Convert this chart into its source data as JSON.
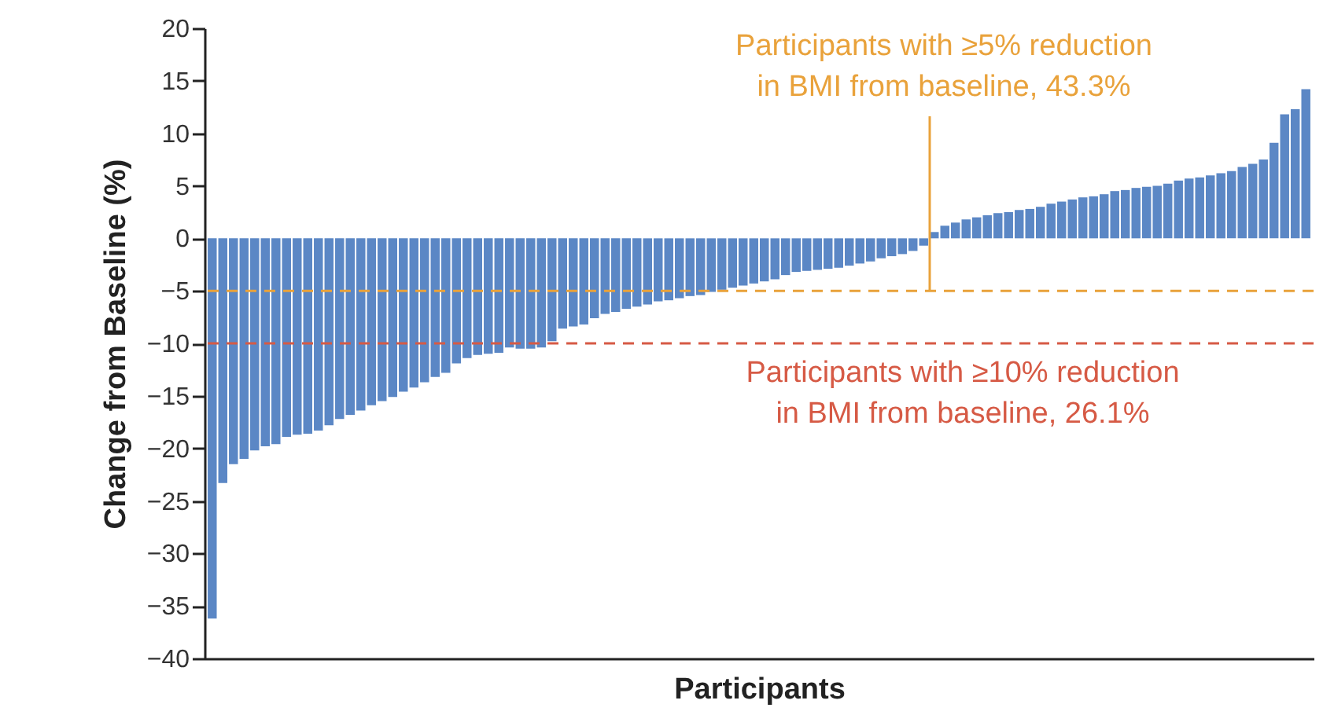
{
  "chart_data": {
    "type": "bar",
    "xlabel": "Participants",
    "ylabel": "Change from Baseline (%)",
    "categories": [
      null,
      null,
      null,
      null,
      null,
      null,
      null,
      null,
      null,
      null,
      null,
      null,
      null,
      null,
      null,
      null,
      null,
      null,
      null,
      null,
      null,
      null,
      null,
      null,
      null,
      null,
      null,
      null,
      null,
      null,
      null,
      null,
      null,
      null,
      null,
      null,
      null,
      null,
      null,
      null,
      null,
      null,
      null,
      null,
      null,
      null,
      null,
      null,
      null,
      null,
      null,
      null,
      null,
      null,
      null,
      null,
      null,
      null,
      null,
      null,
      null,
      null,
      null,
      null,
      null,
      null,
      null,
      null,
      null,
      null,
      null,
      null,
      null,
      null,
      null,
      null,
      null,
      null,
      null,
      null,
      null,
      null,
      null,
      null,
      null,
      null,
      null,
      null,
      null,
      null,
      null,
      null,
      null,
      null,
      null,
      null,
      null,
      null,
      null,
      null,
      null,
      null,
      null,
      null
    ],
    "values": [
      -36.2,
      -23.3,
      -21.5,
      -21,
      -20.2,
      -19.8,
      -19.6,
      -18.9,
      -18.7,
      -18.6,
      -18.3,
      -17.8,
      -17.2,
      -16.8,
      -16.4,
      -15.9,
      -15.5,
      -15.1,
      -14.6,
      -14.2,
      -13.7,
      -13.2,
      -12.8,
      -11.9,
      -11.4,
      -11.1,
      -11,
      -10.9,
      -10.4,
      -10.5,
      -10.5,
      -10.4,
      -9.8,
      -8.6,
      -8.4,
      -8.2,
      -7.6,
      -7.2,
      -7,
      -6.7,
      -6.5,
      -6.3,
      -6,
      -5.9,
      -5.7,
      -5.5,
      -5.4,
      -5.1,
      -4.9,
      -4.7,
      -4.5,
      -4.3,
      -4.1,
      -3.9,
      -3.5,
      -3.2,
      -3.1,
      -3,
      -2.9,
      -2.8,
      -2.6,
      -2.4,
      -2.2,
      -1.9,
      -1.7,
      -1.5,
      -1.2,
      -0.7,
      0.6,
      1.2,
      1.5,
      1.8,
      2,
      2.2,
      2.4,
      2.5,
      2.7,
      2.8,
      3,
      3.3,
      3.5,
      3.7,
      3.9,
      4,
      4.2,
      4.5,
      4.6,
      4.8,
      4.9,
      5,
      5.2,
      5.5,
      5.7,
      5.8,
      6,
      6.2,
      6.4,
      6.8,
      7.1,
      7.5,
      9.1,
      11.8,
      12.3,
      14.2
    ],
    "color": "#5b87c5",
    "ylim": [
      -40,
      20
    ],
    "yticks": [
      -40,
      -35,
      -30,
      -25,
      -20,
      -15,
      -10,
      -5,
      0,
      5,
      10,
      15,
      20
    ],
    "ref_lines": [
      {
        "axis": "y",
        "value": -5,
        "label": "Participants with ≥5% reduction in BMI from baseline, 43.3%",
        "color": "#e9a23b",
        "line_style": "dashed"
      },
      {
        "axis": "y",
        "value": -10,
        "label": "Participants with ≥10% reduction in BMI from baseline, 26.1%",
        "color": "#d65a45",
        "line_style": "dashed"
      }
    ]
  }
}
